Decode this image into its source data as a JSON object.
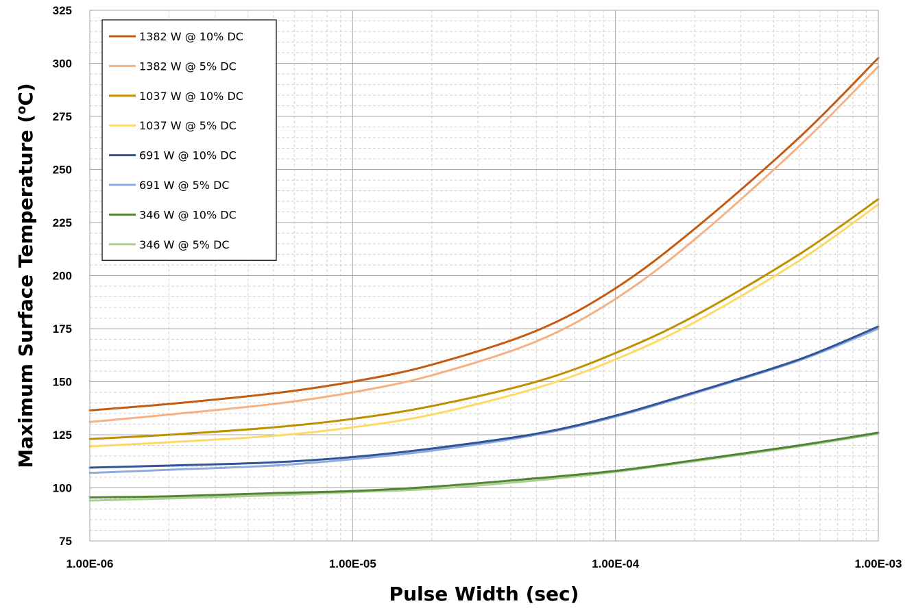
{
  "chart_data": {
    "type": "line",
    "title": "",
    "xlabel": "Pulse Width (sec)",
    "ylabel_main": "Maximum Surface Temperature (",
    "ylabel_sup": "o",
    "ylabel_end": "C)",
    "x_scale": "log",
    "xlim": [
      1e-06,
      0.001
    ],
    "ylim": [
      75,
      325
    ],
    "x_ticks": [
      1e-06,
      1e-05,
      0.0001,
      0.001
    ],
    "x_tick_labels": [
      "1.00E-06",
      "1.00E-05",
      "1.00E-04",
      "1.00E-03"
    ],
    "y_ticks": [
      75,
      100,
      125,
      150,
      175,
      200,
      225,
      250,
      275,
      300,
      325
    ],
    "y_tick_labels": [
      "75",
      "100",
      "125",
      "150",
      "175",
      "200",
      "225",
      "250",
      "275",
      "300",
      "325"
    ],
    "grid": true,
    "minor_grid": true,
    "legend_position": "top-left",
    "x": [
      1e-06,
      2e-06,
      5e-06,
      1e-05,
      2e-05,
      5e-05,
      0.0001,
      0.0002,
      0.0005,
      0.001
    ],
    "series": [
      {
        "name": "1382 W @ 10% DC",
        "color": "#C55A11",
        "values": [
          136.5,
          139.5,
          144.5,
          150,
          158,
          174,
          194,
          222,
          265,
          302.5
        ]
      },
      {
        "name": "1382 W @ 5% DC",
        "color": "#F4B183",
        "values": [
          131,
          134.5,
          139.5,
          145,
          153,
          169,
          189,
          217,
          261,
          298.5
        ]
      },
      {
        "name": "1037 W @ 10% DC",
        "color": "#BF9000",
        "values": [
          123,
          125,
          128.5,
          132.5,
          138.5,
          150,
          163.5,
          181,
          210,
          236
        ]
      },
      {
        "name": "1037 W @ 5% DC",
        "color": "#FFD966",
        "values": [
          119.5,
          121.5,
          124.5,
          128.5,
          134.5,
          147,
          160.5,
          178,
          207,
          233.5
        ]
      },
      {
        "name": "691 W @ 10% DC",
        "color": "#2F5597",
        "values": [
          109.5,
          110.5,
          112,
          114.5,
          118.5,
          125.5,
          134,
          145,
          160.5,
          176
        ]
      },
      {
        "name": "691 W @ 5% DC",
        "color": "#8FAADC",
        "values": [
          107,
          108.5,
          110.5,
          113.5,
          117.5,
          125,
          133.5,
          144.5,
          160,
          175
        ]
      },
      {
        "name": "346 W @ 10% DC",
        "color": "#548235",
        "values": [
          95.5,
          96,
          97.5,
          98.5,
          100.5,
          104.5,
          108,
          113,
          120,
          126
        ]
      },
      {
        "name": "346 W @ 5% DC",
        "color": "#A9D18E",
        "values": [
          94,
          95,
          96.5,
          98,
          99.5,
          103.5,
          107.5,
          112.5,
          119.5,
          125.5
        ]
      }
    ]
  }
}
